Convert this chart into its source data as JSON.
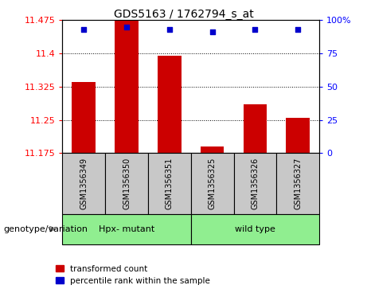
{
  "title": "GDS5163 / 1762794_s_at",
  "samples": [
    "GSM1356349",
    "GSM1356350",
    "GSM1356351",
    "GSM1356325",
    "GSM1356326",
    "GSM1356327"
  ],
  "bar_values": [
    11.335,
    11.475,
    11.395,
    11.19,
    11.285,
    11.255
  ],
  "dot_values": [
    93,
    95,
    93,
    91,
    93,
    93
  ],
  "ymin": 11.175,
  "ymax": 11.475,
  "yticks": [
    11.175,
    11.25,
    11.325,
    11.4,
    11.475
  ],
  "ytick_labels": [
    "11.175",
    "11.25",
    "11.325",
    "11.4",
    "11.475"
  ],
  "y2ticks": [
    0,
    25,
    50,
    75,
    100
  ],
  "y2tick_labels": [
    "0",
    "25",
    "50",
    "75",
    "100%"
  ],
  "bar_color": "#CC0000",
  "dot_color": "#0000CC",
  "sample_bg_color": "#C8C8C8",
  "group_bg_color": "#90EE90",
  "legend_red_label": "transformed count",
  "legend_blue_label": "percentile rank within the sample",
  "genotype_label": "genotype/variation",
  "group1_label": "Hpx- mutant",
  "group2_label": "wild type",
  "group1_samples": [
    0,
    1,
    2
  ],
  "group2_samples": [
    3,
    4,
    5
  ]
}
